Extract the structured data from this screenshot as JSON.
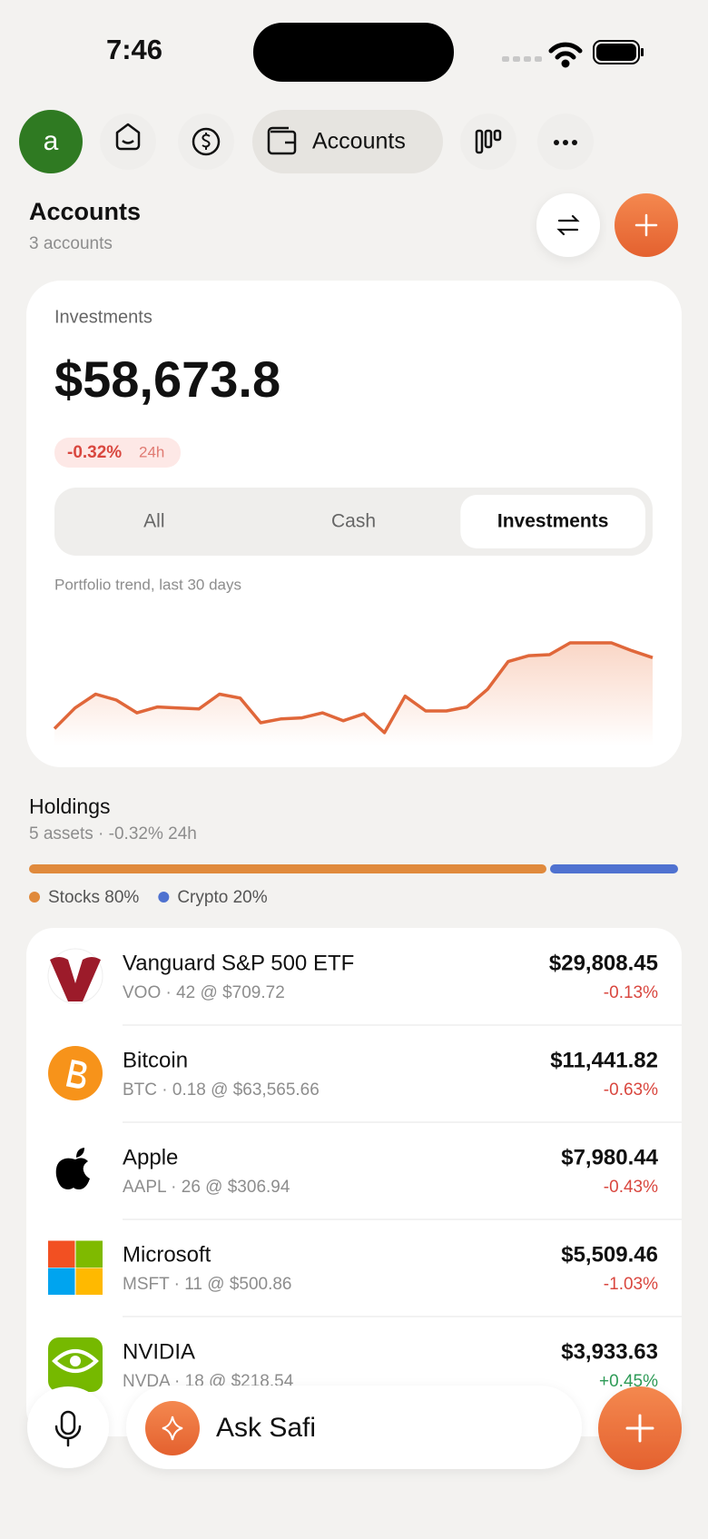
{
  "status_bar": {
    "time": "7:46"
  },
  "nav": {
    "avatar": "a",
    "active_tab": "Accounts"
  },
  "header": {
    "title": "Accounts",
    "subtitle": "3 accounts"
  },
  "summary": {
    "label": "Investments",
    "total": "$58,673.8",
    "change": "-0.32%",
    "period": "24h",
    "segments": [
      "All",
      "Cash",
      "Investments"
    ],
    "selected": 2,
    "trend": {
      "label": "Portfolio trend, last 30 days",
      "color": "#e0673a",
      "values": [
        17,
        38,
        52,
        46,
        33,
        39,
        38,
        37,
        52,
        48,
        23,
        27,
        28,
        33,
        25,
        32,
        13,
        50,
        35,
        35,
        39,
        57,
        85,
        91,
        92,
        104,
        104,
        104,
        96,
        89
      ]
    }
  },
  "holdings": {
    "title": "Holdings",
    "subtitle": "5 assets · -0.32% 24h",
    "allocation": [
      {
        "label": "Stocks 80%",
        "value": 80,
        "color": "#e08a3c"
      },
      {
        "label": "Crypto 20%",
        "value": 20,
        "color": "#4f72d0"
      }
    ],
    "assets": [
      {
        "name": "Vanguard S&P 500 ETF",
        "detail": "VOO · 42 @ $709.72",
        "value": "$29,808.45",
        "change": "-0.13%"
      },
      {
        "name": "Bitcoin",
        "detail": "BTC · 0.18 @ $63,565.66",
        "value": "$11,441.82",
        "change": "-0.63%"
      },
      {
        "name": "Apple",
        "detail": "AAPL · 26 @ $306.94",
        "value": "$7,980.44",
        "change": "-0.43%"
      },
      {
        "name": "Microsoft",
        "detail": "MSFT · 11 @ $500.86",
        "value": "$5,509.46",
        "change": "-1.03%"
      },
      {
        "name": "NVIDIA",
        "detail": "NVDA · 18 @ $218.54",
        "value": "$3,933.63",
        "change": "+0.45%"
      }
    ]
  },
  "assistant": {
    "placeholder": "Ask Safi"
  }
}
